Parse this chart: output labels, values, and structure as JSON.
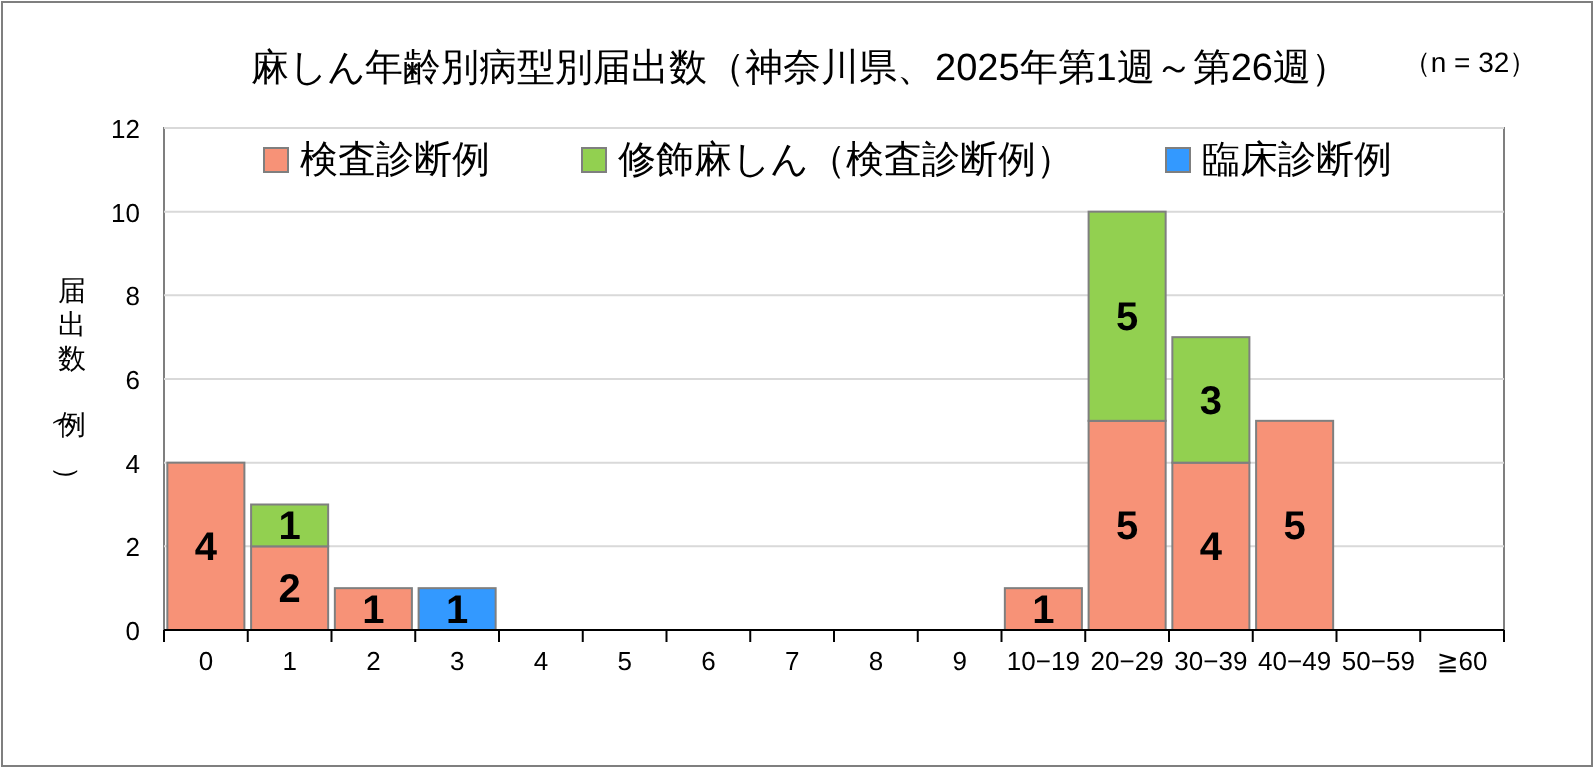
{
  "chart_data": {
    "type": "bar",
    "title": "麻しん年齢別病型別届出数（神奈川県、2025年第1週～第26週）",
    "annotations": [
      "（n = 32）"
    ],
    "ylabel": "届出数（例）",
    "categories": [
      "0",
      "1",
      "2",
      "3",
      "4",
      "5",
      "6",
      "7",
      "8",
      "9",
      "10−19",
      "20−29",
      "30−39",
      "40−49",
      "50−59",
      "≧60"
    ],
    "stacked": true,
    "ylim": [
      0,
      12
    ],
    "yticks": [
      0,
      2,
      4,
      6,
      8,
      10,
      12
    ],
    "grid": "y",
    "legend": "top",
    "series": [
      {
        "name": "検査診断例",
        "color": "#f79277",
        "values": [
          4,
          2,
          1,
          0,
          0,
          0,
          0,
          0,
          0,
          0,
          1,
          5,
          4,
          5,
          0,
          0
        ],
        "value_labels": [
          "4",
          "2",
          "1",
          null,
          null,
          null,
          null,
          null,
          null,
          null,
          "1",
          "5",
          "4",
          "5",
          null,
          null
        ]
      },
      {
        "name": "修飾麻しん（検査診断例）",
        "color": "#92d050",
        "values": [
          0,
          1,
          0,
          0,
          0,
          0,
          0,
          0,
          0,
          0,
          0,
          5,
          3,
          0,
          0,
          0
        ],
        "value_labels": [
          null,
          "1",
          null,
          null,
          null,
          null,
          null,
          null,
          null,
          null,
          null,
          "5",
          "3",
          null,
          null,
          null
        ]
      },
      {
        "name": "臨床診断例",
        "color": "#3399ff",
        "values": [
          0,
          0,
          0,
          1,
          0,
          0,
          0,
          0,
          0,
          0,
          0,
          0,
          0,
          0,
          0,
          0
        ],
        "value_labels": [
          null,
          null,
          null,
          "1",
          null,
          null,
          null,
          null,
          null,
          null,
          null,
          null,
          null,
          null,
          null,
          null
        ]
      }
    ]
  }
}
